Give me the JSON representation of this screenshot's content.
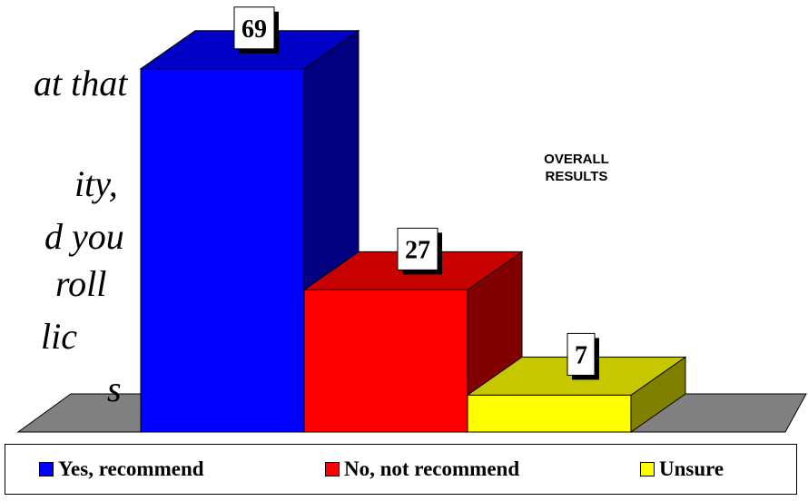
{
  "question_lines": [
    "at that",
    "ity,",
    "d you",
    "roll",
    "lic",
    "s"
  ],
  "annotation": [
    "OVERALL",
    "RESULTS"
  ],
  "colors": {
    "yes": "#0000ff",
    "no": "#ff0000",
    "unsure": "#ffff00",
    "floor": "#808080"
  },
  "chart_data": {
    "type": "bar",
    "categories": [
      "Yes, recommend",
      "No, not recommend",
      "Unsure"
    ],
    "values": [
      69,
      27,
      7
    ],
    "data_labels": [
      "69",
      "27",
      "7"
    ],
    "title": "",
    "xlabel": "",
    "ylabel": "",
    "grid": false,
    "legend_position": "bottom"
  }
}
